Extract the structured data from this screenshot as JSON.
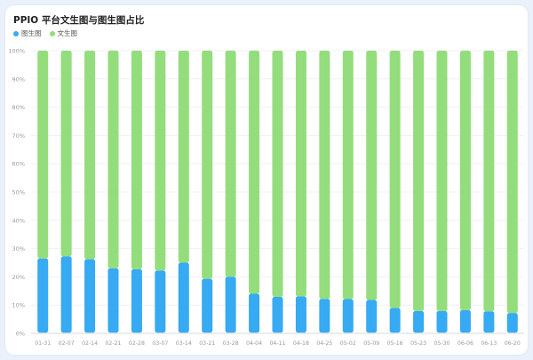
{
  "chart_data": {
    "type": "bar",
    "stacked": true,
    "title": "PPIO 平台文生图与图生图占比",
    "xlabel": "",
    "ylabel": "",
    "ylim": [
      0,
      100
    ],
    "y_ticks": [
      "0%",
      "10%",
      "20%",
      "30%",
      "40%",
      "50%",
      "60%",
      "70%",
      "80%",
      "90%",
      "100%"
    ],
    "grid": true,
    "legend_position": "top-left",
    "categories": [
      "01-31",
      "02-07",
      "02-14",
      "02-21",
      "02-28",
      "03-07",
      "03-14",
      "03-21",
      "03-28",
      "04-04",
      "04-11",
      "04-18",
      "04-25",
      "05-02",
      "05-09",
      "05-16",
      "05-23",
      "05-30",
      "06-06",
      "06-13",
      "06-20"
    ],
    "series": [
      {
        "name": "图生图",
        "color": "#36aaf2",
        "values": [
          26.5,
          27.2,
          26.2,
          23.0,
          22.7,
          22.2,
          25.0,
          19.3,
          20.0,
          14.0,
          12.9,
          13.1,
          12.2,
          12.1,
          11.8,
          9.0,
          7.9,
          7.9,
          8.2,
          7.8,
          7.2
        ]
      },
      {
        "name": "文生图",
        "color": "#94dd7c",
        "values": [
          73.5,
          72.8,
          73.8,
          77.0,
          77.3,
          77.8,
          75.0,
          80.7,
          80.0,
          86.0,
          87.1,
          86.9,
          87.8,
          87.9,
          88.2,
          91.0,
          92.1,
          92.1,
          91.8,
          92.2,
          92.8
        ]
      }
    ]
  }
}
